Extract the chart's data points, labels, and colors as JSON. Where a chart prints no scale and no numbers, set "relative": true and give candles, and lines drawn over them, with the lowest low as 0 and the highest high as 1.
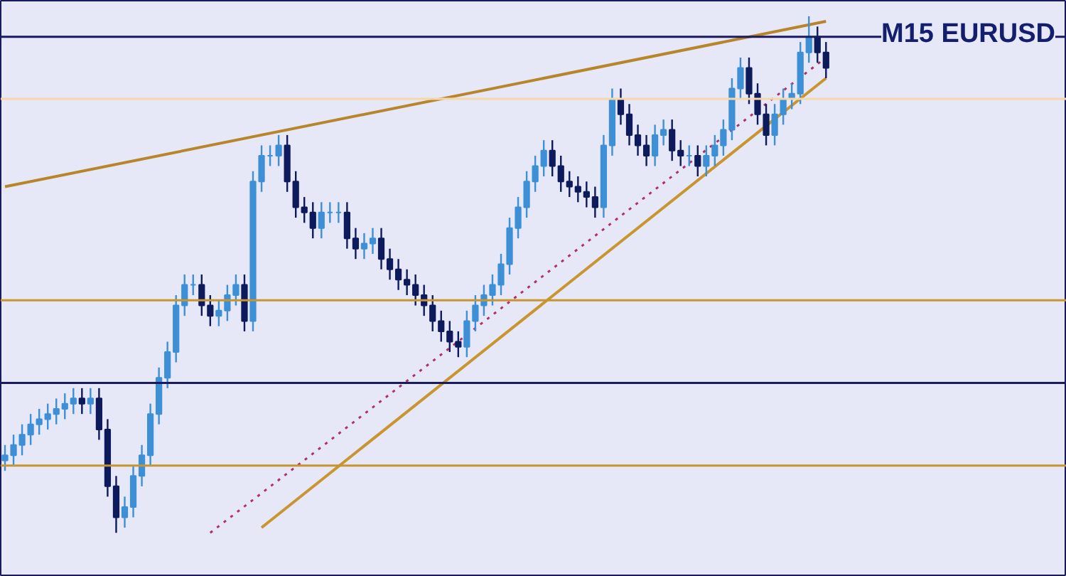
{
  "chart_data": {
    "type": "candlestick",
    "title": "M15 EURUSD",
    "relative": true,
    "grid": false,
    "categories": [
      null,
      null,
      null,
      null,
      null,
      null,
      null,
      null,
      null,
      null,
      null,
      null,
      null,
      null,
      null,
      null,
      null,
      null,
      null,
      null,
      null,
      null,
      null,
      null,
      null,
      null,
      null,
      null,
      null,
      null,
      null,
      null,
      null,
      null,
      null,
      null,
      null,
      null,
      null,
      null,
      null,
      null,
      null,
      null,
      null,
      null,
      null,
      null,
      null,
      null,
      null,
      null,
      null,
      null,
      null,
      null,
      null,
      null,
      null,
      null,
      null,
      null,
      null,
      null,
      null,
      null,
      null,
      null,
      null,
      null,
      null,
      null,
      null,
      null,
      null,
      null,
      null,
      null,
      null,
      null,
      null,
      null,
      null,
      null,
      null,
      null,
      null,
      null,
      null,
      null,
      null,
      null,
      null,
      null,
      null,
      null,
      null
    ],
    "ohlc": [
      [
        0.14,
        0.17,
        0.12,
        0.15
      ],
      [
        0.15,
        0.19,
        0.13,
        0.17
      ],
      [
        0.17,
        0.21,
        0.15,
        0.19
      ],
      [
        0.19,
        0.23,
        0.17,
        0.21
      ],
      [
        0.21,
        0.24,
        0.19,
        0.22
      ],
      [
        0.22,
        0.25,
        0.2,
        0.23
      ],
      [
        0.23,
        0.26,
        0.21,
        0.24
      ],
      [
        0.24,
        0.27,
        0.22,
        0.25
      ],
      [
        0.25,
        0.28,
        0.23,
        0.26
      ],
      [
        0.26,
        0.28,
        0.23,
        0.25
      ],
      [
        0.25,
        0.28,
        0.23,
        0.26
      ],
      [
        0.26,
        0.28,
        0.18,
        0.2
      ],
      [
        0.2,
        0.22,
        0.07,
        0.09
      ],
      [
        0.09,
        0.11,
        0.0,
        0.03
      ],
      [
        0.03,
        0.07,
        0.01,
        0.05
      ],
      [
        0.05,
        0.13,
        0.03,
        0.11
      ],
      [
        0.11,
        0.17,
        0.09,
        0.15
      ],
      [
        0.15,
        0.25,
        0.13,
        0.23
      ],
      [
        0.23,
        0.32,
        0.21,
        0.3
      ],
      [
        0.3,
        0.37,
        0.28,
        0.35
      ],
      [
        0.35,
        0.46,
        0.33,
        0.44
      ],
      [
        0.44,
        0.5,
        0.42,
        0.48
      ],
      [
        0.48,
        0.5,
        0.46,
        0.48
      ],
      [
        0.48,
        0.5,
        0.42,
        0.44
      ],
      [
        0.44,
        0.46,
        0.4,
        0.42
      ],
      [
        0.42,
        0.45,
        0.4,
        0.43
      ],
      [
        0.43,
        0.48,
        0.41,
        0.46
      ],
      [
        0.46,
        0.5,
        0.44,
        0.48
      ],
      [
        0.48,
        0.5,
        0.39,
        0.41
      ],
      [
        0.41,
        0.7,
        0.39,
        0.68
      ],
      [
        0.68,
        0.75,
        0.66,
        0.73
      ],
      [
        0.73,
        0.75,
        0.71,
        0.73
      ],
      [
        0.73,
        0.77,
        0.71,
        0.75
      ],
      [
        0.75,
        0.77,
        0.66,
        0.68
      ],
      [
        0.68,
        0.7,
        0.61,
        0.63
      ],
      [
        0.63,
        0.65,
        0.6,
        0.62
      ],
      [
        0.62,
        0.64,
        0.57,
        0.59
      ],
      [
        0.59,
        0.64,
        0.57,
        0.62
      ],
      [
        0.62,
        0.64,
        0.6,
        0.62
      ],
      [
        0.62,
        0.64,
        0.6,
        0.62
      ],
      [
        0.62,
        0.64,
        0.55,
        0.57
      ],
      [
        0.57,
        0.59,
        0.53,
        0.55
      ],
      [
        0.55,
        0.58,
        0.53,
        0.56
      ],
      [
        0.56,
        0.59,
        0.54,
        0.57
      ],
      [
        0.57,
        0.59,
        0.51,
        0.53
      ],
      [
        0.53,
        0.55,
        0.49,
        0.51
      ],
      [
        0.51,
        0.53,
        0.47,
        0.49
      ],
      [
        0.49,
        0.51,
        0.46,
        0.48
      ],
      [
        0.48,
        0.5,
        0.44,
        0.46
      ],
      [
        0.46,
        0.48,
        0.42,
        0.44
      ],
      [
        0.44,
        0.46,
        0.39,
        0.41
      ],
      [
        0.41,
        0.43,
        0.37,
        0.39
      ],
      [
        0.39,
        0.41,
        0.35,
        0.37
      ],
      [
        0.37,
        0.39,
        0.34,
        0.36
      ],
      [
        0.36,
        0.43,
        0.34,
        0.41
      ],
      [
        0.41,
        0.46,
        0.39,
        0.44
      ],
      [
        0.44,
        0.48,
        0.42,
        0.46
      ],
      [
        0.46,
        0.5,
        0.44,
        0.48
      ],
      [
        0.48,
        0.54,
        0.46,
        0.52
      ],
      [
        0.52,
        0.61,
        0.5,
        0.59
      ],
      [
        0.59,
        0.65,
        0.57,
        0.63
      ],
      [
        0.63,
        0.7,
        0.61,
        0.68
      ],
      [
        0.68,
        0.73,
        0.66,
        0.71
      ],
      [
        0.71,
        0.76,
        0.69,
        0.74
      ],
      [
        0.74,
        0.76,
        0.69,
        0.71
      ],
      [
        0.71,
        0.73,
        0.66,
        0.68
      ],
      [
        0.68,
        0.7,
        0.65,
        0.67
      ],
      [
        0.67,
        0.69,
        0.64,
        0.66
      ],
      [
        0.66,
        0.68,
        0.63,
        0.65
      ],
      [
        0.65,
        0.67,
        0.61,
        0.63
      ],
      [
        0.63,
        0.77,
        0.61,
        0.75
      ],
      [
        0.75,
        0.86,
        0.73,
        0.84
      ],
      [
        0.84,
        0.86,
        0.79,
        0.81
      ],
      [
        0.81,
        0.83,
        0.75,
        0.77
      ],
      [
        0.77,
        0.79,
        0.73,
        0.75
      ],
      [
        0.75,
        0.77,
        0.71,
        0.73
      ],
      [
        0.73,
        0.79,
        0.71,
        0.77
      ],
      [
        0.77,
        0.8,
        0.75,
        0.78
      ],
      [
        0.78,
        0.8,
        0.72,
        0.74
      ],
      [
        0.74,
        0.76,
        0.71,
        0.73
      ],
      [
        0.73,
        0.75,
        0.71,
        0.73
      ],
      [
        0.73,
        0.75,
        0.69,
        0.71
      ],
      [
        0.71,
        0.75,
        0.69,
        0.73
      ],
      [
        0.73,
        0.77,
        0.71,
        0.75
      ],
      [
        0.75,
        0.8,
        0.73,
        0.78
      ],
      [
        0.78,
        0.88,
        0.76,
        0.86
      ],
      [
        0.86,
        0.92,
        0.84,
        0.9
      ],
      [
        0.9,
        0.92,
        0.83,
        0.85
      ],
      [
        0.85,
        0.87,
        0.79,
        0.81
      ],
      [
        0.81,
        0.83,
        0.75,
        0.77
      ],
      [
        0.77,
        0.83,
        0.75,
        0.81
      ],
      [
        0.81,
        0.86,
        0.79,
        0.84
      ],
      [
        0.84,
        0.87,
        0.82,
        0.85
      ],
      [
        0.85,
        0.95,
        0.83,
        0.93
      ],
      [
        0.93,
        1.0,
        0.91,
        0.96
      ],
      [
        0.96,
        0.98,
        0.91,
        0.93
      ],
      [
        0.93,
        0.95,
        0.88,
        0.9
      ]
    ],
    "series": [
      {
        "type": "line",
        "values": [
          0.67,
          null,
          null,
          null,
          null,
          null,
          null,
          null,
          null,
          null,
          null,
          null,
          null,
          null,
          null,
          null,
          null,
          null,
          null,
          null,
          null,
          null,
          null,
          null,
          null,
          null,
          null,
          null,
          null,
          null,
          null,
          null,
          null,
          null,
          null,
          null,
          null,
          null,
          null,
          null,
          null,
          null,
          null,
          null,
          null,
          null,
          null,
          null,
          null,
          null,
          null,
          null,
          null,
          null,
          null,
          null,
          null,
          null,
          null,
          null,
          null,
          null,
          null,
          null,
          null,
          null,
          null,
          null,
          null,
          null,
          null,
          null,
          null,
          null,
          null,
          null,
          null,
          null,
          null,
          null,
          null,
          null,
          null,
          null,
          null,
          null,
          null,
          null,
          null,
          null,
          null,
          null,
          null,
          null,
          null,
          null,
          0.99
        ],
        "color": "#b8862a",
        "line_style": "solid"
      },
      {
        "type": "line",
        "values": [
          null,
          null,
          null,
          null,
          null,
          null,
          null,
          null,
          null,
          null,
          null,
          null,
          null,
          null,
          null,
          null,
          null,
          null,
          null,
          null,
          null,
          null,
          null,
          null,
          null,
          null,
          null,
          null,
          null,
          null,
          0.01,
          null,
          null,
          null,
          null,
          null,
          null,
          null,
          null,
          null,
          null,
          null,
          null,
          null,
          null,
          null,
          null,
          null,
          null,
          null,
          null,
          null,
          null,
          null,
          null,
          null,
          null,
          null,
          null,
          null,
          null,
          null,
          null,
          null,
          null,
          null,
          null,
          null,
          null,
          null,
          null,
          null,
          null,
          null,
          null,
          null,
          null,
          null,
          null,
          null,
          null,
          null,
          null,
          null,
          null,
          null,
          null,
          null,
          null,
          null,
          null,
          null,
          null,
          null,
          null,
          null,
          0.88
        ],
        "color": "#c8952e",
        "line_style": "solid"
      },
      {
        "type": "line",
        "values": [
          null,
          null,
          null,
          null,
          null,
          null,
          null,
          null,
          null,
          null,
          null,
          null,
          null,
          null,
          null,
          null,
          null,
          null,
          null,
          null,
          null,
          null,
          null,
          null,
          0.0,
          null,
          null,
          null,
          null,
          null,
          null,
          null,
          null,
          null,
          null,
          null,
          null,
          null,
          null,
          null,
          null,
          null,
          null,
          null,
          null,
          null,
          null,
          null,
          null,
          null,
          null,
          null,
          null,
          null,
          null,
          null,
          null,
          null,
          null,
          null,
          null,
          null,
          null,
          null,
          null,
          null,
          null,
          null,
          null,
          null,
          null,
          null,
          null,
          null,
          null,
          null,
          null,
          null,
          null,
          null,
          null,
          null,
          null,
          null,
          null,
          null,
          null,
          null,
          null,
          null,
          null,
          null,
          null,
          null,
          null,
          null,
          0.92
        ],
        "color": "#b0306a",
        "line_style": "dotted"
      }
    ],
    "ref_lines": [
      {
        "axis": "y",
        "value": 0.96,
        "color": "#1a1a5e",
        "line_style": "solid"
      },
      {
        "axis": "y",
        "value": 0.84,
        "color": "#f5d7a8",
        "line_style": "solid"
      },
      {
        "axis": "y",
        "value": 0.45,
        "color": "#c8952e",
        "line_style": "solid"
      },
      {
        "axis": "y",
        "value": 0.29,
        "color": "#1a1a5e",
        "line_style": "solid"
      },
      {
        "axis": "y",
        "value": 0.13,
        "color": "#c8952e",
        "line_style": "solid"
      }
    ]
  }
}
